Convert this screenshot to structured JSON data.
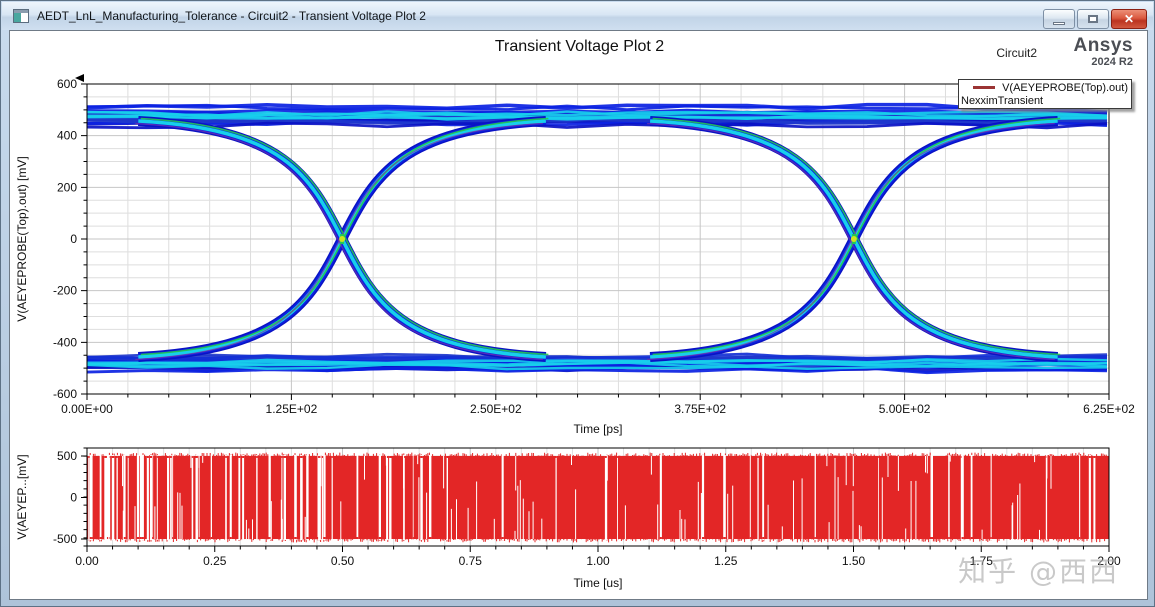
{
  "window": {
    "title": "AEDT_LnL_Manufacturing_Tolerance - Circuit2 - Transient Voltage Plot 2",
    "buttons": [
      "minimize",
      "maximize",
      "close"
    ],
    "close_glyph": "x"
  },
  "header": {
    "plot_title": "Transient Voltage Plot 2",
    "design": "Circuit2",
    "brand": "Ansys",
    "brand_version": "2024 R2"
  },
  "legend": {
    "series": "V(AEYEPROBE(Top).out)",
    "solution": "NexximTransient",
    "swatch_color": "#9b3434"
  },
  "watermark": {
    "text": "知乎 @西西"
  },
  "chart_data": [
    {
      "type": "line",
      "subtype": "eye_diagram",
      "xlabel": "Time [ps]",
      "ylabel": "V(AEYEPROBE(Top).out) [mV]",
      "xlim": [
        0,
        625
      ],
      "ylim": [
        -600,
        600
      ],
      "x_tick_labels": [
        "0.00E+00",
        "1.25E+02",
        "2.50E+02",
        "3.75E+02",
        "5.00E+02",
        "6.25E+02"
      ],
      "x_tick_values": [
        0,
        125,
        250,
        375,
        500,
        625
      ],
      "y_tick_labels": [
        "600",
        "400",
        "200",
        "0",
        "-200",
        "-400",
        "-600"
      ],
      "y_tick_values": [
        600,
        400,
        200,
        0,
        -200,
        -400,
        -600
      ],
      "x_minor_step": 25,
      "y_minor_step": 50,
      "grid": true,
      "unit_interval_ps": 312.5,
      "crossing_times_ps": [
        156,
        469
      ],
      "crossing_level_mv": 0,
      "high_rail_mv": 480,
      "low_rail_mv": -480,
      "rail_spread_mv": [
        400,
        515
      ],
      "transition_halfwidth_ps": 76,
      "density_colors": {
        "outline_blue": "#0a12c4",
        "blue2": "#1430d6",
        "blue3": "#0b22e2",
        "blue4": "#2038cc",
        "cyan": "#17cfec",
        "green": "#23c94f",
        "purple": "#7b2fa8",
        "crossing_hotspot": "#cfe51c"
      },
      "seed": 7
    },
    {
      "type": "line",
      "subtype": "transient_bitstream",
      "xlabel": "Time [us]",
      "ylabel": "V(AEYEP...[mV]",
      "xlim": [
        0,
        2
      ],
      "ylim": [
        -584,
        596
      ],
      "x_tick_labels": [
        "0.00",
        "0.25",
        "0.50",
        "0.75",
        "1.00",
        "1.25",
        "1.50",
        "1.75",
        "2.00"
      ],
      "x_tick_values": [
        0,
        0.25,
        0.5,
        0.75,
        1,
        1.25,
        1.5,
        1.75,
        2
      ],
      "y_tick_labels": [
        "500",
        "0",
        "-500"
      ],
      "y_tick_values": [
        500,
        0,
        -500
      ],
      "x_minor_step": 0.05,
      "y_minor_step": 100,
      "grid": true,
      "amplitude_mv": 500,
      "color": "#e32626",
      "seed": 13
    }
  ]
}
